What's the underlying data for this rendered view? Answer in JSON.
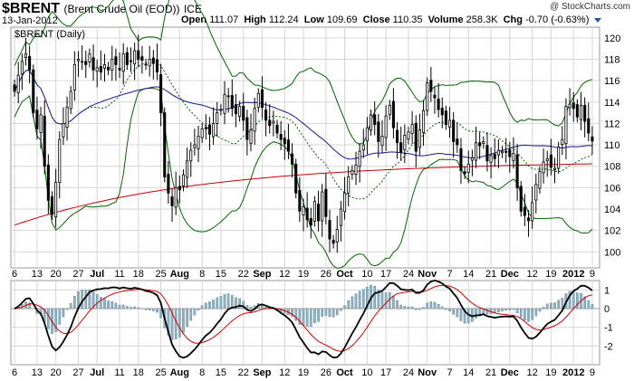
{
  "header": {
    "symbol": "$BRENT",
    "name": "(Brent Crude Oil (EOD))",
    "exchange": "ICE",
    "date": "13-Jan-2012",
    "watermark": "@ StockCharts.com",
    "open_label": "Open",
    "open": "111.07",
    "high_label": "High",
    "high": "112.24",
    "low_label": "Low",
    "low": "109.69",
    "close_label": "Close",
    "close": "110.35",
    "volume_label": "Volume",
    "volume": "258.3K",
    "chg_label": "Chg",
    "chg": "-0.70 (-0.63%)",
    "dropdown_icon": "triangle-down-icon"
  },
  "colors": {
    "price": "#000000",
    "ma_short": "#1a1a8c",
    "ma_long": "#cc0000",
    "bands": "#006600",
    "band_mid": "#006600",
    "macd": "#000000",
    "signal": "#cc0000",
    "hist": "#8fb3c4",
    "grid": "#d6d6d6"
  },
  "chart_data": [
    {
      "type": "ohlc",
      "title": "$BRENT (Daily)",
      "ylim": [
        98.5,
        121
      ],
      "yticks": [
        100,
        102,
        104,
        106,
        108,
        110,
        112,
        114,
        116,
        118,
        120
      ],
      "xticks": [
        "6",
        "13",
        "20",
        "27",
        "Jul",
        "11",
        "18",
        "25",
        "Aug",
        "8",
        "15",
        "22",
        "Sep",
        "12",
        "19",
        "26",
        "Oct",
        "10",
        "17",
        "24",
        "Nov",
        "7",
        "14",
        "21",
        "Dec",
        "12",
        "19",
        "2012",
        "9"
      ],
      "series": [
        {
          "close": [
            115.0,
            116.5,
            117.8,
            118.5,
            117.0,
            113.0,
            111.5,
            112.8,
            108.0,
            104.8,
            103.5,
            106.5,
            110.5,
            112.0,
            113.5,
            115.0,
            117.5,
            118.0,
            117.8,
            117.5,
            118.5,
            117.0,
            117.2,
            116.8,
            117.5,
            117.0,
            118.0,
            117.5,
            117.0,
            118.5,
            117.5,
            117.8,
            118.8,
            118.0,
            117.9,
            117.5,
            118.0,
            117.6,
            116.8,
            113.0,
            107.0,
            105.5,
            104.3,
            106.0,
            105.8,
            107.2,
            108.5,
            109.5,
            110.0,
            110.8,
            111.5,
            111.5,
            111.0,
            112.0,
            113.0,
            113.3,
            114.7,
            114.5,
            113.4,
            112.9,
            113.6,
            112.3,
            110.5,
            111.4,
            113.4,
            114.8,
            113.5,
            112.3,
            111.8,
            112.2,
            111.1,
            110.5,
            110.1,
            109.4,
            108.2,
            105.5,
            103.8,
            104.2,
            103.0,
            102.5,
            104.7,
            102.9,
            105.6,
            103.3,
            101.2,
            100.8,
            102.1,
            104.0,
            105.5,
            107.0,
            107.6,
            108.1,
            109.4,
            110.0,
            111.6,
            112.8,
            111.9,
            110.3,
            110.8,
            112.7,
            113.7,
            111.6,
            110.2,
            109.3,
            110.9,
            111.2,
            111.9,
            109.4,
            111.4,
            113.2,
            115.8,
            115.0,
            114.4,
            113.3,
            112.8,
            111.9,
            112.3,
            110.3,
            110.0,
            107.6,
            107.3,
            108.2,
            108.8,
            110.2,
            109.9,
            110.3,
            108.5,
            109.0,
            108.7,
            109.5,
            109.4,
            109.3,
            108.9,
            109.2,
            106.0,
            103.8,
            103.4,
            102.9,
            104.6,
            106.3,
            107.5,
            108.4,
            108.7,
            107.9,
            107.8,
            109.8,
            110.5,
            113.6,
            113.8,
            113.4,
            112.6,
            113.7,
            112.2,
            111.1,
            110.35
          ]
        }
      ],
      "overlays": [
        "MA short (blue)",
        "MA long (red)",
        "Bollinger Bands (green)"
      ]
    },
    {
      "type": "macd",
      "ylim": [
        -3,
        1.5
      ],
      "yticks": [
        -2,
        -1,
        0,
        1
      ]
    }
  ]
}
